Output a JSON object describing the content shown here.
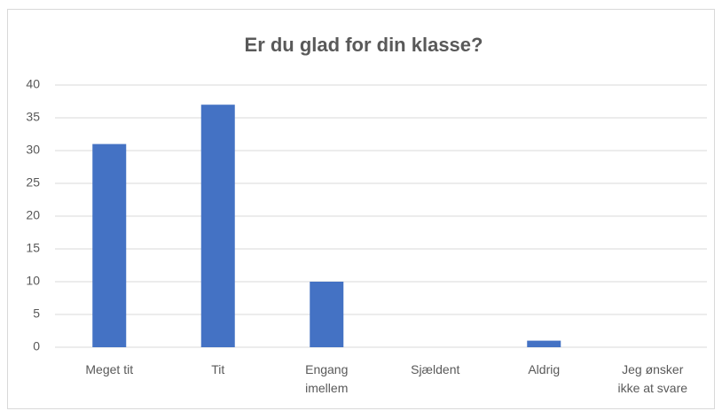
{
  "chart_data": {
    "type": "bar",
    "title": "Er du glad for din klasse?",
    "categories": [
      "Meget tit",
      "Tit",
      "Engang imellem",
      "Sjældent",
      "Aldrig",
      "Jeg ønsker ikke at svare"
    ],
    "values": [
      31,
      37,
      10,
      0,
      1,
      0
    ],
    "color": "#4472c4",
    "ylim": [
      0,
      40
    ],
    "yticks": [
      0,
      5,
      10,
      15,
      20,
      25,
      30,
      35,
      40
    ],
    "grid": true
  }
}
